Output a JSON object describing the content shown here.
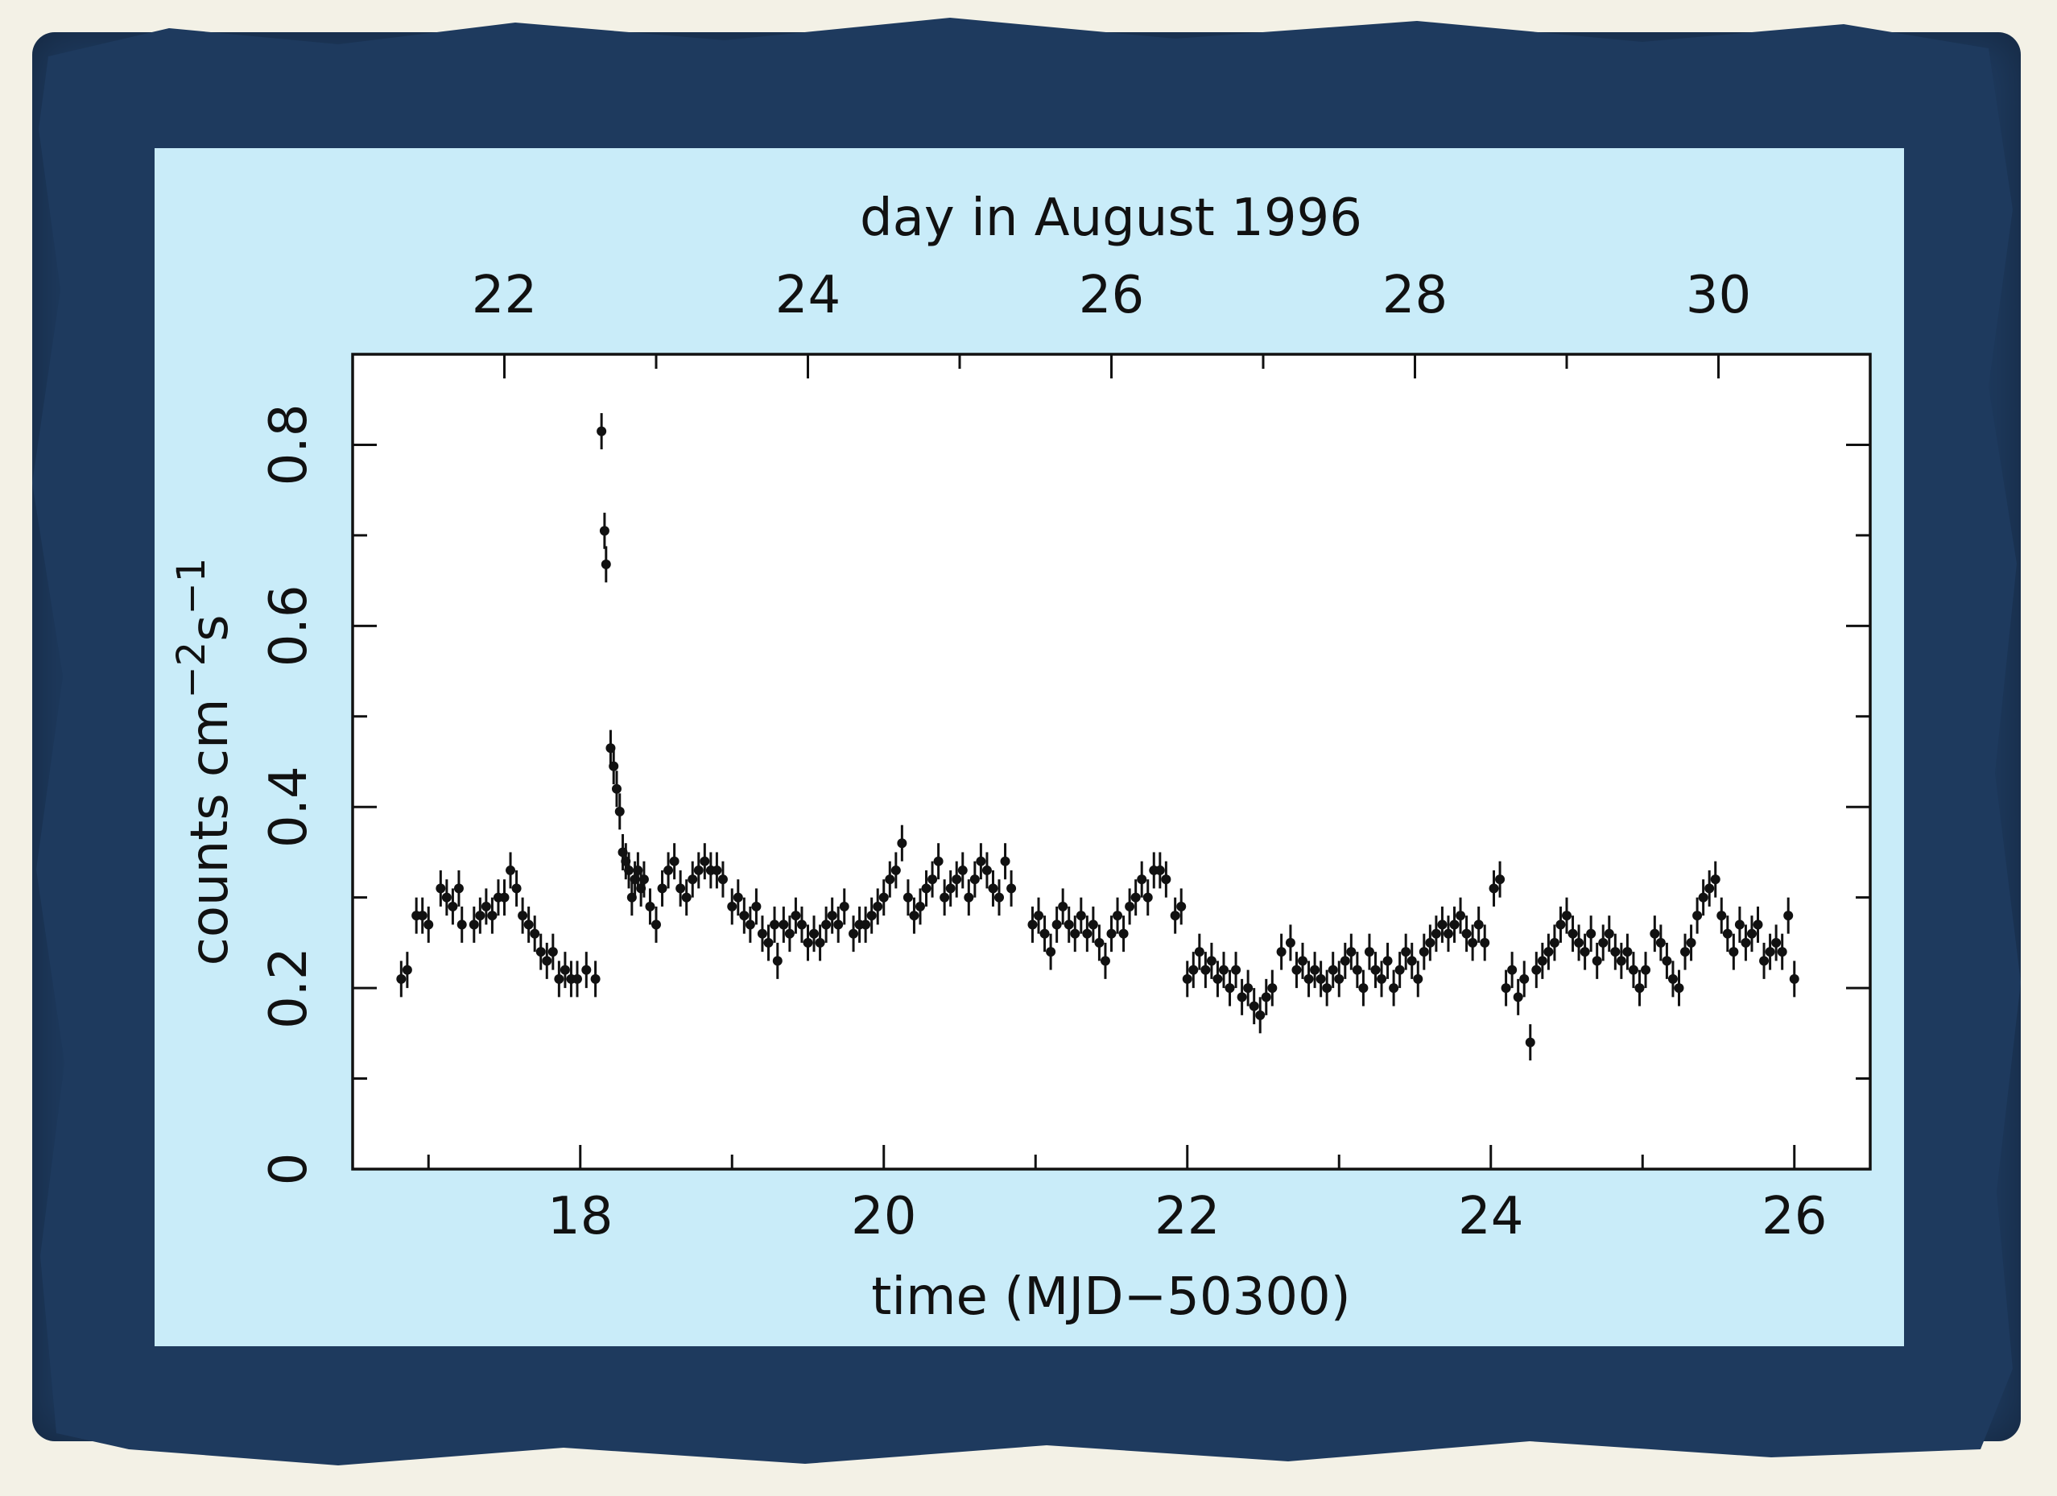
{
  "colors": {
    "frame": "#1e3a5e",
    "panel": "#c9ecf9",
    "plot_bg": "#ffffff",
    "ink": "#111111",
    "page": "#f3f1e6"
  },
  "chart_data": {
    "type": "scatter",
    "error_bars": true,
    "title": "",
    "xlabel": "time (MJD−50300)",
    "ylabel": "counts cm",
    "ylabel_sup1": "−2",
    "ylabel_mid": "s",
    "ylabel_sup2": "−1",
    "top_axis_label": "day in August 1996",
    "xlim": [
      16.5,
      26.5
    ],
    "ylim": [
      0,
      0.9
    ],
    "x_ticks_major": [
      18,
      20,
      22,
      24,
      26
    ],
    "x_tick_labels": [
      "18",
      "20",
      "22",
      "24",
      "26"
    ],
    "y_ticks_major": [
      0,
      0.2,
      0.4,
      0.6,
      0.8
    ],
    "y_tick_labels": [
      "0",
      "0.2",
      "0.4",
      "0.6",
      "0.8"
    ],
    "top_ticks_mjd": [
      17.5,
      19.5,
      21.5,
      23.5,
      25.5
    ],
    "top_tick_labels": [
      "22",
      "24",
      "26",
      "28",
      "30"
    ],
    "grid": false,
    "series": [
      {
        "marker": "filled-circle",
        "points": [
          [
            16.82,
            0.21
          ],
          [
            16.86,
            0.22
          ],
          [
            16.92,
            0.28
          ],
          [
            16.96,
            0.28
          ],
          [
            17.0,
            0.27
          ],
          [
            17.08,
            0.31
          ],
          [
            17.12,
            0.3
          ],
          [
            17.16,
            0.29
          ],
          [
            17.2,
            0.31
          ],
          [
            17.22,
            0.27
          ],
          [
            17.3,
            0.27
          ],
          [
            17.34,
            0.28
          ],
          [
            17.38,
            0.29
          ],
          [
            17.42,
            0.28
          ],
          [
            17.46,
            0.3
          ],
          [
            17.5,
            0.3
          ],
          [
            17.54,
            0.33
          ],
          [
            17.58,
            0.31
          ],
          [
            17.62,
            0.28
          ],
          [
            17.66,
            0.27
          ],
          [
            17.7,
            0.26
          ],
          [
            17.74,
            0.24
          ],
          [
            17.78,
            0.23
          ],
          [
            17.82,
            0.24
          ],
          [
            17.86,
            0.21
          ],
          [
            17.9,
            0.22
          ],
          [
            17.94,
            0.21
          ],
          [
            17.98,
            0.21
          ],
          [
            18.04,
            0.22
          ],
          [
            18.1,
            0.21
          ],
          [
            18.14,
            0.815
          ],
          [
            18.16,
            0.705
          ],
          [
            18.17,
            0.668
          ],
          [
            18.2,
            0.465
          ],
          [
            18.22,
            0.445
          ],
          [
            18.24,
            0.42
          ],
          [
            18.26,
            0.395
          ],
          [
            18.28,
            0.35
          ],
          [
            18.3,
            0.34
          ],
          [
            18.32,
            0.33
          ],
          [
            18.34,
            0.3
          ],
          [
            18.36,
            0.32
          ],
          [
            18.38,
            0.33
          ],
          [
            18.4,
            0.31
          ],
          [
            18.42,
            0.32
          ],
          [
            18.46,
            0.29
          ],
          [
            18.5,
            0.27
          ],
          [
            18.54,
            0.31
          ],
          [
            18.58,
            0.33
          ],
          [
            18.62,
            0.34
          ],
          [
            18.66,
            0.31
          ],
          [
            18.7,
            0.3
          ],
          [
            18.74,
            0.32
          ],
          [
            18.78,
            0.33
          ],
          [
            18.82,
            0.34
          ],
          [
            18.86,
            0.33
          ],
          [
            18.9,
            0.33
          ],
          [
            18.94,
            0.32
          ],
          [
            19.0,
            0.29
          ],
          [
            19.04,
            0.3
          ],
          [
            19.08,
            0.28
          ],
          [
            19.12,
            0.27
          ],
          [
            19.16,
            0.29
          ],
          [
            19.2,
            0.26
          ],
          [
            19.24,
            0.25
          ],
          [
            19.28,
            0.27
          ],
          [
            19.3,
            0.23
          ],
          [
            19.34,
            0.27
          ],
          [
            19.38,
            0.26
          ],
          [
            19.42,
            0.28
          ],
          [
            19.46,
            0.27
          ],
          [
            19.5,
            0.25
          ],
          [
            19.54,
            0.26
          ],
          [
            19.58,
            0.25
          ],
          [
            19.62,
            0.27
          ],
          [
            19.66,
            0.28
          ],
          [
            19.7,
            0.27
          ],
          [
            19.74,
            0.29
          ],
          [
            19.8,
            0.26
          ],
          [
            19.84,
            0.27
          ],
          [
            19.88,
            0.27
          ],
          [
            19.92,
            0.28
          ],
          [
            19.96,
            0.29
          ],
          [
            20.0,
            0.3
          ],
          [
            20.04,
            0.32
          ],
          [
            20.08,
            0.33
          ],
          [
            20.12,
            0.36
          ],
          [
            20.16,
            0.3
          ],
          [
            20.2,
            0.28
          ],
          [
            20.24,
            0.29
          ],
          [
            20.28,
            0.31
          ],
          [
            20.32,
            0.32
          ],
          [
            20.36,
            0.34
          ],
          [
            20.4,
            0.3
          ],
          [
            20.44,
            0.31
          ],
          [
            20.48,
            0.32
          ],
          [
            20.52,
            0.33
          ],
          [
            20.56,
            0.3
          ],
          [
            20.6,
            0.32
          ],
          [
            20.64,
            0.34
          ],
          [
            20.68,
            0.33
          ],
          [
            20.72,
            0.31
          ],
          [
            20.76,
            0.3
          ],
          [
            20.8,
            0.34
          ],
          [
            20.84,
            0.31
          ],
          [
            20.98,
            0.27
          ],
          [
            21.02,
            0.28
          ],
          [
            21.06,
            0.26
          ],
          [
            21.1,
            0.24
          ],
          [
            21.14,
            0.27
          ],
          [
            21.18,
            0.29
          ],
          [
            21.22,
            0.27
          ],
          [
            21.26,
            0.26
          ],
          [
            21.3,
            0.28
          ],
          [
            21.34,
            0.26
          ],
          [
            21.38,
            0.27
          ],
          [
            21.42,
            0.25
          ],
          [
            21.46,
            0.23
          ],
          [
            21.5,
            0.26
          ],
          [
            21.54,
            0.28
          ],
          [
            21.58,
            0.26
          ],
          [
            21.62,
            0.29
          ],
          [
            21.66,
            0.3
          ],
          [
            21.7,
            0.32
          ],
          [
            21.74,
            0.3
          ],
          [
            21.78,
            0.33
          ],
          [
            21.82,
            0.33
          ],
          [
            21.86,
            0.32
          ],
          [
            21.92,
            0.28
          ],
          [
            21.96,
            0.29
          ],
          [
            22.0,
            0.21
          ],
          [
            22.04,
            0.22
          ],
          [
            22.08,
            0.24
          ],
          [
            22.12,
            0.22
          ],
          [
            22.16,
            0.23
          ],
          [
            22.2,
            0.21
          ],
          [
            22.24,
            0.22
          ],
          [
            22.28,
            0.2
          ],
          [
            22.32,
            0.22
          ],
          [
            22.36,
            0.19
          ],
          [
            22.4,
            0.2
          ],
          [
            22.44,
            0.18
          ],
          [
            22.48,
            0.17
          ],
          [
            22.52,
            0.19
          ],
          [
            22.56,
            0.2
          ],
          [
            22.62,
            0.24
          ],
          [
            22.68,
            0.25
          ],
          [
            22.72,
            0.22
          ],
          [
            22.76,
            0.23
          ],
          [
            22.8,
            0.21
          ],
          [
            22.84,
            0.22
          ],
          [
            22.88,
            0.21
          ],
          [
            22.92,
            0.2
          ],
          [
            22.96,
            0.22
          ],
          [
            23.0,
            0.21
          ],
          [
            23.04,
            0.23
          ],
          [
            23.08,
            0.24
          ],
          [
            23.12,
            0.22
          ],
          [
            23.16,
            0.2
          ],
          [
            23.2,
            0.24
          ],
          [
            23.24,
            0.22
          ],
          [
            23.28,
            0.21
          ],
          [
            23.32,
            0.23
          ],
          [
            23.36,
            0.2
          ],
          [
            23.4,
            0.22
          ],
          [
            23.44,
            0.24
          ],
          [
            23.48,
            0.23
          ],
          [
            23.52,
            0.21
          ],
          [
            23.56,
            0.24
          ],
          [
            23.6,
            0.25
          ],
          [
            23.64,
            0.26
          ],
          [
            23.68,
            0.27
          ],
          [
            23.72,
            0.26
          ],
          [
            23.76,
            0.27
          ],
          [
            23.8,
            0.28
          ],
          [
            23.84,
            0.26
          ],
          [
            23.88,
            0.25
          ],
          [
            23.92,
            0.27
          ],
          [
            23.96,
            0.25
          ],
          [
            24.02,
            0.31
          ],
          [
            24.06,
            0.32
          ],
          [
            24.1,
            0.2
          ],
          [
            24.14,
            0.22
          ],
          [
            24.18,
            0.19
          ],
          [
            24.22,
            0.21
          ],
          [
            24.26,
            0.14
          ],
          [
            24.3,
            0.22
          ],
          [
            24.34,
            0.23
          ],
          [
            24.38,
            0.24
          ],
          [
            24.42,
            0.25
          ],
          [
            24.46,
            0.27
          ],
          [
            24.5,
            0.28
          ],
          [
            24.54,
            0.26
          ],
          [
            24.58,
            0.25
          ],
          [
            24.62,
            0.24
          ],
          [
            24.66,
            0.26
          ],
          [
            24.7,
            0.23
          ],
          [
            24.74,
            0.25
          ],
          [
            24.78,
            0.26
          ],
          [
            24.82,
            0.24
          ],
          [
            24.86,
            0.23
          ],
          [
            24.9,
            0.24
          ],
          [
            24.94,
            0.22
          ],
          [
            24.98,
            0.2
          ],
          [
            25.02,
            0.22
          ],
          [
            25.08,
            0.26
          ],
          [
            25.12,
            0.25
          ],
          [
            25.16,
            0.23
          ],
          [
            25.2,
            0.21
          ],
          [
            25.24,
            0.2
          ],
          [
            25.28,
            0.24
          ],
          [
            25.32,
            0.25
          ],
          [
            25.36,
            0.28
          ],
          [
            25.4,
            0.3
          ],
          [
            25.44,
            0.31
          ],
          [
            25.48,
            0.32
          ],
          [
            25.52,
            0.28
          ],
          [
            25.56,
            0.26
          ],
          [
            25.6,
            0.24
          ],
          [
            25.64,
            0.27
          ],
          [
            25.68,
            0.25
          ],
          [
            25.72,
            0.26
          ],
          [
            25.76,
            0.27
          ],
          [
            25.8,
            0.23
          ],
          [
            25.84,
            0.24
          ],
          [
            25.88,
            0.25
          ],
          [
            25.92,
            0.24
          ],
          [
            25.96,
            0.28
          ],
          [
            26.0,
            0.21
          ]
        ],
        "error": 0.02
      }
    ]
  }
}
